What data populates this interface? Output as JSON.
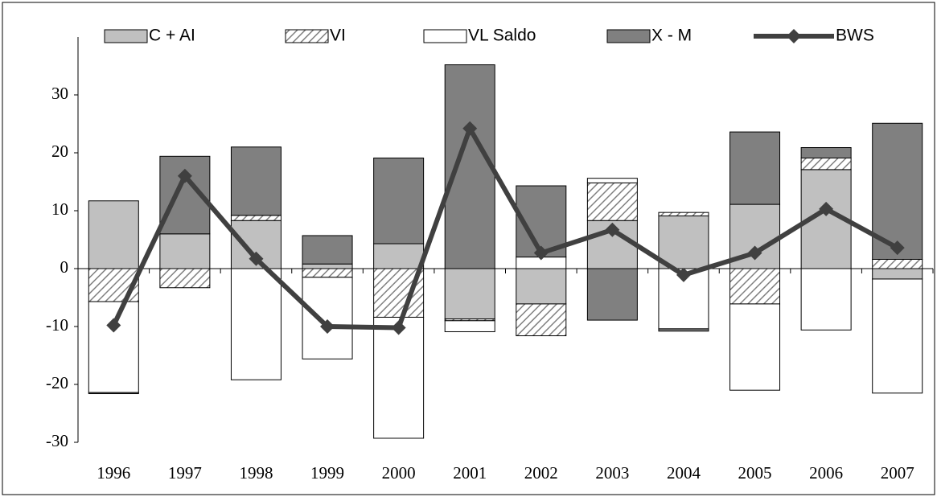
{
  "chart_data": {
    "type": "stacked-bar-line",
    "categories": [
      "1996",
      "1997",
      "1998",
      "1999",
      "2000",
      "2001",
      "2002",
      "2003",
      "2004",
      "2005",
      "2006",
      "2007"
    ],
    "series": [
      {
        "name": "C + AI",
        "type": "bar",
        "color": "#c0c0c0",
        "values": [
          11.7,
          6.0,
          8.3,
          0.8,
          4.3,
          -8.7,
          -6.1,
          8.3,
          9.1,
          11.1,
          17.1,
          -1.8
        ]
      },
      {
        "name": "VI",
        "type": "bar",
        "color": "#808080",
        "pattern": "hatch",
        "values": [
          -5.7,
          -3.3,
          0.9,
          -1.5,
          -8.4,
          -0.3,
          -5.5,
          6.5,
          0.6,
          -6.1,
          2.0,
          1.6
        ]
      },
      {
        "name": "VL Saldo",
        "type": "bar",
        "color": "#ffffff",
        "values": [
          -15.7,
          0,
          -19.2,
          -14.1,
          -20.9,
          -1.9,
          2.0,
          0.8,
          -10.4,
          -14.9,
          -10.6,
          -19.7
        ]
      },
      {
        "name": "X - M",
        "type": "bar",
        "color": "#808080",
        "values": [
          -0.2,
          13.4,
          11.8,
          4.9,
          14.8,
          35.2,
          12.3,
          -8.9,
          -0.4,
          12.5,
          1.8,
          23.5
        ]
      },
      {
        "name": "BWS",
        "type": "line",
        "color": "#404040",
        "values": [
          -9.8,
          16.0,
          1.7,
          -10.0,
          -10.2,
          24.2,
          2.7,
          6.7,
          -1.1,
          2.7,
          10.3,
          3.6
        ]
      }
    ],
    "ylim": [
      -30,
      40
    ],
    "yticks": [
      -30,
      -20,
      -10,
      0,
      10,
      20,
      30
    ],
    "legend": "top",
    "grid": false
  }
}
